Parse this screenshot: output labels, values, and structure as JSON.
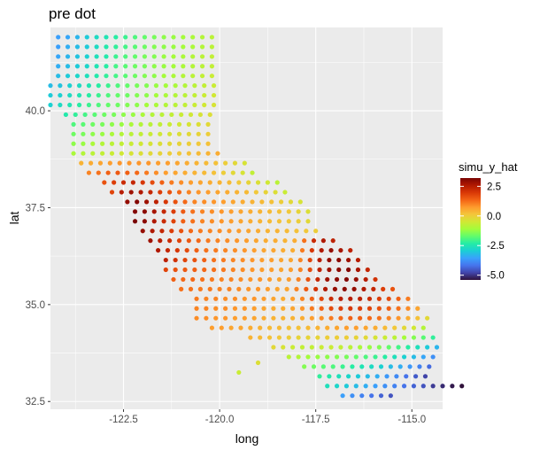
{
  "chart_data": {
    "type": "scatter",
    "title": "pre dot",
    "xlabel": "long",
    "ylabel": "lat",
    "xlim": [
      -124.4,
      -114.2
    ],
    "ylim": [
      32.3,
      42.15
    ],
    "x_ticks": [
      -122.5,
      -120.0,
      -117.5,
      -115.0
    ],
    "x_tick_labels": [
      "-122.5",
      "-120.0",
      "-117.5",
      "-115.0"
    ],
    "y_ticks": [
      32.5,
      35.0,
      37.5,
      40.0
    ],
    "y_tick_labels": [
      "32.5",
      "35.0",
      "37.5",
      "40.0"
    ],
    "grid": true,
    "background": "#EBEBEB",
    "grid_color": "#FFFFFF",
    "legend": {
      "title": "simu_y_hat",
      "position": "right",
      "ticks": [
        2.5,
        0.0,
        -2.5,
        -5.0
      ],
      "tick_labels": [
        "2.5",
        "0.0",
        "-2.5",
        "-5.0"
      ],
      "range": [
        -5.4,
        3.2
      ],
      "colormap": "turbo",
      "colors": [
        "#30123B",
        "#4145AB",
        "#4675ED",
        "#39A2FC",
        "#1BCFD4",
        "#24ECA6",
        "#61FC6C",
        "#A4FC3B",
        "#D1E834",
        "#F3C63A",
        "#FE9B2D",
        "#F36315",
        "#D93806",
        "#B11901",
        "#7A0403"
      ]
    },
    "grid_spacing": [
      0.25,
      0.25
    ],
    "rows": [
      {
        "lat": 41.9,
        "lon_start": -124.2,
        "values": [
          -3.6,
          -3.5,
          -3.3,
          -3.0,
          -2.7,
          -2.5,
          -2.3,
          -2.1,
          -1.9,
          -1.7,
          -1.5,
          -1.3,
          -1.2,
          -1.1,
          -1.0,
          -0.9,
          -0.8
        ]
      },
      {
        "lat": 41.65,
        "lon_start": -124.2,
        "values": [
          -3.6,
          -3.4,
          -3.2,
          -3.0,
          -2.7,
          -2.4,
          -2.2,
          -2.0,
          -1.8,
          -1.6,
          -1.4,
          -1.3,
          -1.2,
          -1.1,
          -1.0,
          -0.9,
          -0.8
        ]
      },
      {
        "lat": 41.4,
        "lon_start": -124.2,
        "values": [
          -3.5,
          -3.3,
          -3.1,
          -2.9,
          -2.6,
          -2.4,
          -2.1,
          -1.9,
          -1.7,
          -1.5,
          -1.4,
          -1.2,
          -1.1,
          -1.0,
          -0.9,
          -0.8,
          -0.7
        ]
      },
      {
        "lat": 41.15,
        "lon_start": -124.2,
        "values": [
          -3.4,
          -3.2,
          -3.0,
          -2.8,
          -2.5,
          -2.3,
          -2.0,
          -1.8,
          -1.6,
          -1.5,
          -1.3,
          -1.2,
          -1.1,
          -1.0,
          -0.9,
          -0.8,
          -0.7
        ]
      },
      {
        "lat": 40.9,
        "lon_start": -124.2,
        "values": [
          -3.2,
          -3.0,
          -2.8,
          -2.6,
          -2.4,
          -2.2,
          -2.0,
          -1.8,
          -1.6,
          -1.4,
          -1.3,
          -1.1,
          -1.0,
          -0.9,
          -0.8,
          -0.7,
          -0.6
        ]
      },
      {
        "lat": 40.65,
        "lon_start": -124.4,
        "values": [
          -3.2,
          -3.1,
          -2.9,
          -2.7,
          -2.5,
          -2.3,
          -2.1,
          -1.9,
          -1.7,
          -1.5,
          -1.4,
          -1.2,
          -1.1,
          -1.0,
          -0.9,
          -0.8,
          -0.7,
          -0.6
        ]
      },
      {
        "lat": 40.4,
        "lon_start": -124.4,
        "values": [
          -3.0,
          -2.9,
          -2.7,
          -2.5,
          -2.3,
          -2.1,
          -1.9,
          -1.7,
          -1.6,
          -1.4,
          -1.3,
          -1.1,
          -1.0,
          -0.9,
          -0.8,
          -0.7,
          -0.6,
          -0.5
        ]
      },
      {
        "lat": 40.15,
        "lon_start": -124.4,
        "values": [
          -2.9,
          -2.7,
          -2.5,
          -2.3,
          -2.1,
          -1.9,
          -1.7,
          -1.6,
          -1.4,
          -1.3,
          -1.1,
          -1.0,
          -0.9,
          -0.8,
          -0.7,
          -0.6,
          -0.5,
          -0.4
        ]
      },
      {
        "lat": 39.9,
        "lon_start": -124.0,
        "values": [
          -2.4,
          -2.2,
          -2.0,
          -1.8,
          -1.6,
          -1.5,
          -1.3,
          -1.2,
          -1.0,
          -0.9,
          -0.8,
          -0.7,
          -0.6,
          -0.5,
          -0.4,
          -0.3
        ]
      },
      {
        "lat": 39.65,
        "lon_start": -123.8,
        "values": [
          -1.9,
          -1.8,
          -1.6,
          -1.5,
          -1.3,
          -1.2,
          -1.0,
          -0.9,
          -0.8,
          -0.7,
          -0.6,
          -0.5,
          -0.4,
          -0.3,
          -0.2
        ]
      },
      {
        "lat": 39.4,
        "lon_start": -123.8,
        "values": [
          -1.6,
          -1.5,
          -1.3,
          -1.2,
          -1.0,
          -0.9,
          -0.8,
          -0.7,
          -0.6,
          -0.5,
          -0.4,
          -0.3,
          -0.2,
          -0.1,
          0.0
        ]
      },
      {
        "lat": 39.15,
        "lon_start": -123.8,
        "values": [
          -1.3,
          -1.2,
          -1.0,
          -0.9,
          -0.8,
          -0.7,
          -0.6,
          -0.5,
          -0.4,
          -0.3,
          -0.2,
          -0.1,
          0.0,
          0.1,
          0.2
        ]
      },
      {
        "lat": 38.9,
        "lon_start": -123.8,
        "values": [
          -1.0,
          -0.9,
          -0.8,
          -0.7,
          -0.6,
          -0.5,
          -0.4,
          -0.3,
          -0.2,
          -0.1,
          0.0,
          0.1,
          0.2,
          0.3,
          0.4,
          0.5
        ]
      },
      {
        "lat": 38.65,
        "lon_start": -123.6,
        "values": [
          0.4,
          0.5,
          0.6,
          0.7,
          0.8,
          0.8,
          0.8,
          0.8,
          0.7,
          0.7,
          0.6,
          0.5,
          0.4,
          0.3,
          0.2,
          0.0,
          -0.2,
          -0.4
        ]
      },
      {
        "lat": 38.4,
        "lon_start": -123.4,
        "values": [
          1.0,
          1.2,
          1.4,
          1.5,
          1.4,
          1.3,
          1.1,
          0.9,
          0.7,
          0.6,
          0.5,
          0.4,
          0.3,
          0.2,
          0.0,
          -0.2,
          -0.4,
          -0.7
        ]
      },
      {
        "lat": 38.15,
        "lon_start": -123.0,
        "values": [
          1.6,
          1.9,
          2.2,
          2.3,
          2.0,
          1.7,
          1.4,
          1.1,
          0.9,
          0.7,
          0.6,
          0.5,
          0.4,
          0.3,
          0.1,
          -0.1,
          -0.3,
          -0.5,
          -0.8
        ]
      },
      {
        "lat": 37.9,
        "lon_start": -122.8,
        "values": [
          1.8,
          2.5,
          2.8,
          2.6,
          2.3,
          1.9,
          1.6,
          1.3,
          1.0,
          0.8,
          0.7,
          0.6,
          0.5,
          0.4,
          0.3,
          0.1,
          -0.1,
          -0.3,
          -0.6
        ]
      },
      {
        "lat": 37.65,
        "lon_start": -122.4,
        "values": [
          2.9,
          3.1,
          2.8,
          2.4,
          2.0,
          1.6,
          1.3,
          1.0,
          0.9,
          0.8,
          0.7,
          0.6,
          0.5,
          0.4,
          0.3,
          0.2,
          0.0,
          -0.2,
          -0.4
        ]
      },
      {
        "lat": 37.4,
        "lon_start": -122.2,
        "values": [
          3.1,
          3.0,
          2.7,
          2.3,
          1.9,
          1.5,
          1.2,
          1.0,
          0.9,
          0.8,
          0.7,
          0.6,
          0.5,
          0.4,
          0.3,
          0.2,
          0.1,
          -0.1,
          -0.3
        ]
      },
      {
        "lat": 37.15,
        "lon_start": -122.2,
        "values": [
          3.2,
          3.0,
          2.6,
          2.2,
          1.8,
          1.4,
          1.2,
          1.0,
          0.9,
          0.8,
          0.7,
          0.6,
          0.5,
          0.4,
          0.3,
          0.2,
          0.1,
          0.0,
          -0.2
        ]
      },
      {
        "lat": 36.9,
        "lon_start": -122.0,
        "values": [
          2.9,
          2.6,
          2.3,
          1.9,
          1.6,
          1.3,
          1.1,
          1.0,
          0.9,
          0.8,
          0.7,
          0.6,
          0.5,
          0.4,
          0.4,
          0.3,
          0.2,
          0.1,
          0.0
        ]
      },
      {
        "lat": 36.65,
        "lon_start": -121.8,
        "values": [
          2.8,
          2.5,
          2.2,
          1.8,
          1.5,
          1.3,
          1.1,
          1.0,
          0.9,
          0.8,
          0.7,
          0.6,
          0.5,
          0.5,
          0.4,
          0.5,
          1.2,
          2.2,
          2.6,
          2.4
        ]
      },
      {
        "lat": 36.4,
        "lon_start": -121.6,
        "values": [
          2.6,
          2.3,
          2.0,
          1.7,
          1.4,
          1.2,
          1.1,
          1.0,
          0.9,
          0.8,
          0.7,
          0.6,
          0.6,
          0.5,
          0.5,
          1.1,
          2.0,
          2.6,
          2.9,
          2.7,
          2.4
        ]
      },
      {
        "lat": 36.15,
        "lon_start": -121.4,
        "values": [
          2.4,
          2.1,
          1.8,
          1.6,
          1.4,
          1.2,
          1.1,
          1.0,
          0.9,
          0.8,
          0.7,
          0.7,
          0.6,
          0.6,
          1.0,
          1.8,
          2.5,
          2.9,
          3.0,
          2.8,
          2.5
        ]
      },
      {
        "lat": 35.9,
        "lon_start": -121.4,
        "values": [
          1.8,
          1.6,
          1.5,
          1.4,
          1.3,
          1.2,
          1.1,
          1.0,
          0.9,
          0.8,
          0.7,
          0.7,
          0.6,
          0.7,
          1.0,
          1.7,
          2.4,
          2.8,
          3.0,
          3.1,
          2.7,
          2.3
        ]
      },
      {
        "lat": 35.65,
        "lon_start": -121.2,
        "values": [
          1.4,
          1.3,
          1.3,
          1.2,
          1.1,
          1.0,
          1.0,
          0.9,
          0.8,
          0.8,
          0.7,
          0.6,
          0.7,
          1.0,
          1.6,
          2.3,
          2.8,
          3.0,
          3.1,
          2.9,
          2.5,
          2.1
        ]
      },
      {
        "lat": 35.4,
        "lon_start": -121.0,
        "values": [
          1.2,
          1.2,
          1.1,
          1.1,
          1.0,
          1.0,
          0.9,
          0.8,
          0.8,
          0.7,
          0.6,
          0.6,
          1.0,
          1.5,
          2.1,
          2.6,
          2.9,
          3.0,
          2.9,
          2.6,
          2.3,
          1.9,
          1.6
        ]
      },
      {
        "lat": 35.15,
        "lon_start": -120.6,
        "values": [
          1.1,
          1.0,
          1.0,
          0.9,
          0.9,
          0.8,
          0.8,
          0.7,
          0.6,
          0.5,
          0.7,
          1.0,
          1.4,
          1.8,
          2.2,
          2.5,
          2.5,
          2.4,
          2.2,
          1.9,
          1.7,
          1.4,
          1.1
        ]
      },
      {
        "lat": 34.9,
        "lon_start": -120.6,
        "values": [
          1.0,
          1.0,
          0.9,
          0.9,
          0.8,
          0.8,
          0.7,
          0.6,
          0.5,
          0.5,
          0.6,
          0.8,
          1.1,
          1.4,
          1.7,
          1.9,
          2.0,
          1.9,
          1.8,
          1.6,
          1.4,
          1.2,
          0.9,
          0.6
        ]
      },
      {
        "lat": 34.65,
        "lon_start": -120.6,
        "values": [
          0.9,
          0.9,
          0.8,
          0.8,
          0.7,
          0.7,
          0.6,
          0.5,
          0.4,
          0.4,
          0.4,
          0.5,
          0.7,
          0.9,
          1.1,
          1.3,
          1.4,
          1.4,
          1.3,
          1.2,
          1.0,
          0.8,
          0.5,
          0.2,
          -0.2
        ]
      },
      {
        "lat": 34.4,
        "lon_start": -120.2,
        "values": [
          0.7,
          0.7,
          0.6,
          0.6,
          0.5,
          0.4,
          0.3,
          0.3,
          0.2,
          0.2,
          0.3,
          0.4,
          0.5,
          0.6,
          0.7,
          0.7,
          0.6,
          0.5,
          0.3,
          0.1,
          -0.2,
          -0.5,
          -0.9
        ]
      },
      {
        "lat": 34.15,
        "lon_start": -119.2,
        "values": [
          0.4,
          0.3,
          0.2,
          0.1,
          0.0,
          -0.1,
          -0.1,
          -0.1,
          0.0,
          0.0,
          0.0,
          -0.1,
          -0.2,
          -0.4,
          -0.6,
          -0.8,
          -1.1,
          -1.4,
          -1.8,
          -2.2
        ]
      },
      {
        "lat": 33.9,
        "lon_start": -118.6,
        "values": [
          -0.2,
          -0.4,
          -0.6,
          -0.7,
          -0.7,
          -0.6,
          -0.6,
          -0.7,
          -0.8,
          -1.0,
          -1.2,
          -1.4,
          -1.7,
          -2.0,
          -2.3,
          -2.6,
          -3.0,
          -3.3
        ]
      },
      {
        "lat": 33.65,
        "lon_start": -118.2,
        "values": [
          -0.8,
          -0.9,
          -1.1,
          -1.2,
          -1.3,
          -1.4,
          -1.5,
          -1.7,
          -1.9,
          -2.1,
          -2.3,
          -2.6,
          -2.9,
          -3.2,
          -3.5,
          -3.8
        ]
      },
      {
        "lat": 33.4,
        "lon_start": -117.8,
        "values": [
          -1.4,
          -1.6,
          -1.8,
          -1.9,
          -2.1,
          -2.3,
          -2.5,
          -2.7,
          -2.9,
          -3.2,
          -3.4,
          -3.7,
          -4.0,
          -4.3
        ]
      },
      {
        "lat": 33.15,
        "lon_start": -117.4,
        "values": [
          -2.2,
          -2.4,
          -2.6,
          -2.8,
          -3.0,
          -3.2,
          -3.4,
          -3.7,
          -3.9,
          -4.2,
          -4.5,
          -4.8
        ]
      },
      {
        "lat": 32.9,
        "lon_start": -117.2,
        "values": [
          -2.6,
          -2.8,
          -3.0,
          -3.2,
          -3.4,
          -3.6,
          -3.8,
          -4.0,
          -4.2,
          -4.4,
          -4.6,
          -4.9,
          -5.1,
          -5.3,
          -5.4
        ]
      },
      {
        "lat": 32.65,
        "lon_start": -116.8,
        "values": [
          -3.6,
          -3.8,
          -4.0,
          -4.2,
          -4.4,
          -4.6
        ]
      }
    ],
    "isolated_points": [
      {
        "lon": -119.5,
        "lat": 33.25,
        "value": -0.6
      },
      {
        "lon": -119.0,
        "lat": 33.5,
        "value": -0.3
      }
    ]
  }
}
